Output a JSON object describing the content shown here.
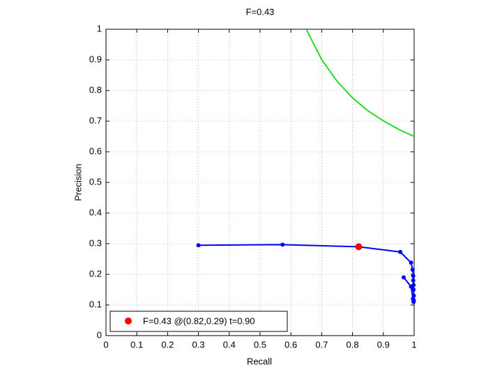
{
  "chart_data": {
    "type": "line",
    "title": "F=0.43",
    "xlabel": "Recall",
    "ylabel": "Precision",
    "xlim": [
      0,
      1
    ],
    "ylim": [
      0,
      1
    ],
    "xticks": [
      0,
      0.1,
      0.2,
      0.3,
      0.4,
      0.5,
      0.6,
      0.7,
      0.8,
      0.9,
      1
    ],
    "yticks": [
      0,
      0.1,
      0.2,
      0.3,
      0.4,
      0.5,
      0.6,
      0.7,
      0.8,
      0.9,
      1
    ],
    "grid": true,
    "curve": {
      "color": "#0000ff",
      "x": [
        0.3,
        0.573,
        0.82,
        0.955,
        0.99,
        0.995,
        0.997,
        0.997,
        0.998,
        0.998,
        0.999,
        0.999,
        0.998,
        0.996,
        0.99,
        0.966
      ],
      "y": [
        0.295,
        0.297,
        0.29,
        0.273,
        0.238,
        0.215,
        0.195,
        0.18,
        0.165,
        0.15,
        0.13,
        0.115,
        0.11,
        0.12,
        0.16,
        0.19
      ]
    },
    "iso_f_curve": {
      "color": "#22dd22",
      "x": [
        0.65,
        0.7,
        0.75,
        0.8,
        0.85,
        0.9,
        0.95,
        1
      ],
      "y": [
        1,
        0.901,
        0.83,
        0.776,
        0.734,
        0.701,
        0.673,
        0.65
      ]
    },
    "best_point": {
      "name": "F=0.43 @(0.82,0.29) t=0.90",
      "color": "#ff0000",
      "x": 0.82,
      "y": 0.29
    },
    "legend": "bottom-left"
  }
}
